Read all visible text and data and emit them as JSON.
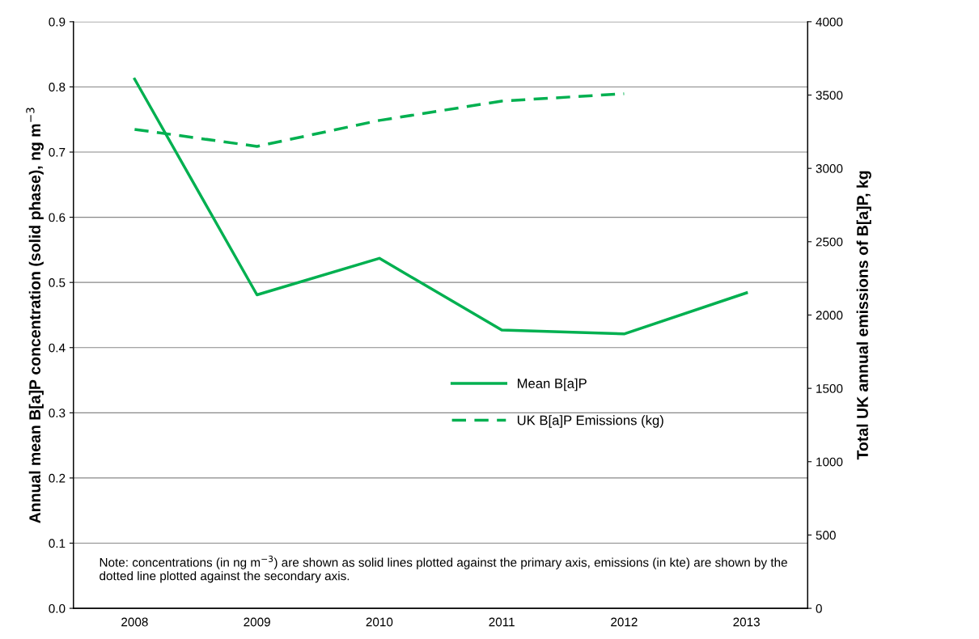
{
  "chart_data": {
    "type": "line",
    "ylabel": "Annual mean B[a]P concentration (solid phase), ng m$^{−3}$",
    "y2label": "Total UK annual emissions of B[a]P, kg",
    "categories": [
      "2008",
      "2009",
      "2010",
      "2011",
      "2012",
      "2013"
    ],
    "series": [
      {
        "name": "Mean B[a]P",
        "color": "#00b050",
        "values": [
          0.812,
          0.481,
          0.537,
          0.427,
          0.421,
          0.484
        ],
        "line_style": "solid"
      },
      {
        "name": "UK B[a]P Emissions (kg)",
        "color": "#00b050",
        "values": [
          3266,
          3150,
          3327,
          3459,
          3509,
          null
        ],
        "line_style": "dashed",
        "axis": "y2"
      }
    ],
    "ylim": [
      0,
      0.9
    ],
    "yticks": [
      {
        "value": 0,
        "label": "0.0"
      },
      {
        "value": 0.1,
        "label": "0.1"
      },
      {
        "value": 0.2,
        "label": "0.2"
      },
      {
        "value": 0.3,
        "label": "0.3"
      },
      {
        "value": 0.4,
        "label": "0.4"
      },
      {
        "value": 0.5,
        "label": "0.5"
      },
      {
        "value": 0.6,
        "label": "0.6"
      },
      {
        "value": 0.7,
        "label": "0.7"
      },
      {
        "value": 0.8,
        "label": "0.8"
      },
      {
        "value": 0.9,
        "label": "0.9"
      }
    ],
    "y2lim": [
      0,
      4000
    ],
    "y2ticks": [
      0,
      500,
      1000,
      1500,
      2000,
      2500,
      3000,
      3500,
      4000
    ],
    "grid": "y",
    "legend": "center",
    "marker": "none",
    "annotations": [
      "Note: concentrations (in ng m$^{−3}$) are shown as solid lines plotted against the primary axis, emissions (in kte) are shown by the dotted line plotted against the secondary axis."
    ]
  }
}
